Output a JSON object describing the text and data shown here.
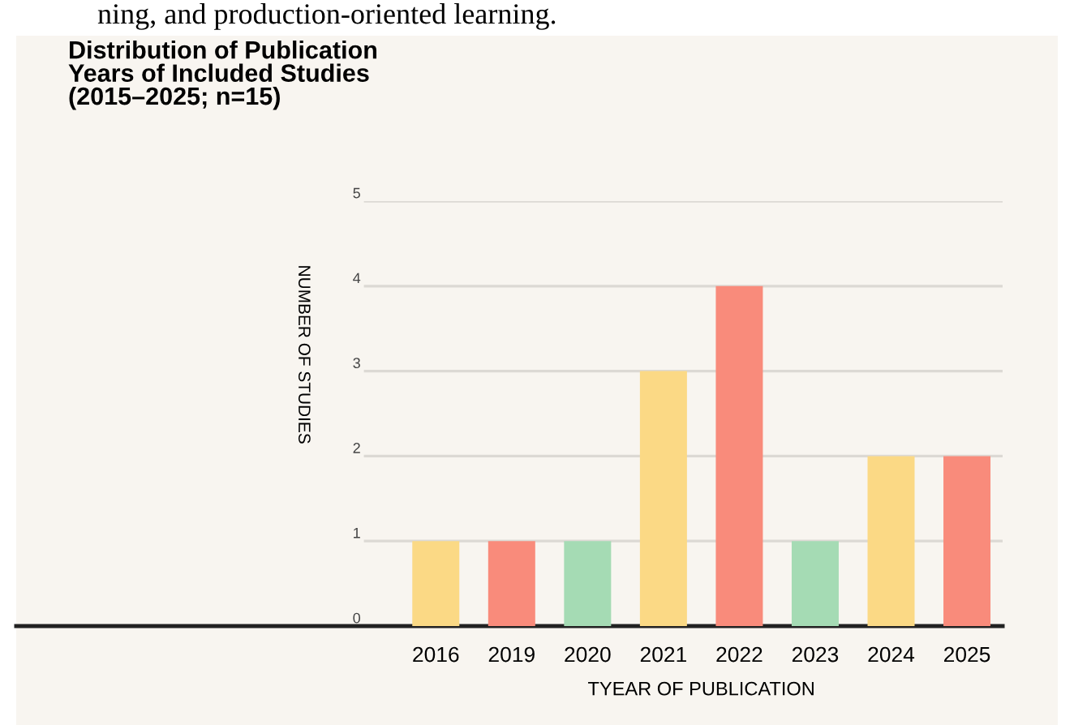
{
  "chart_data": {
    "type": "bar",
    "title": "Distribution of Publication\nYears of Included Studies\n(2015–2025; n=15)",
    "annotations": [
      "ning, and production-oriented learning."
    ],
    "xlabel": "TYEAR OF PUBLICATION",
    "ylabel": "NUMBER OF STUDIES",
    "categories": [
      "2016",
      "2019",
      "2020",
      "2021",
      "2022",
      "2023",
      "2024",
      "2025"
    ],
    "values": [
      1,
      1,
      1,
      3,
      4,
      1,
      2,
      2
    ],
    "colors": [
      "#fbd985",
      "#f98b7b",
      "#a5dbb4",
      "#fbd985",
      "#f98b7b",
      "#a5dbb4",
      "#fbd985",
      "#f98b7b"
    ],
    "ylim": [
      0,
      5
    ],
    "yticks": [
      0,
      1,
      2,
      3,
      4,
      5
    ],
    "grid": "y",
    "legend": false
  }
}
